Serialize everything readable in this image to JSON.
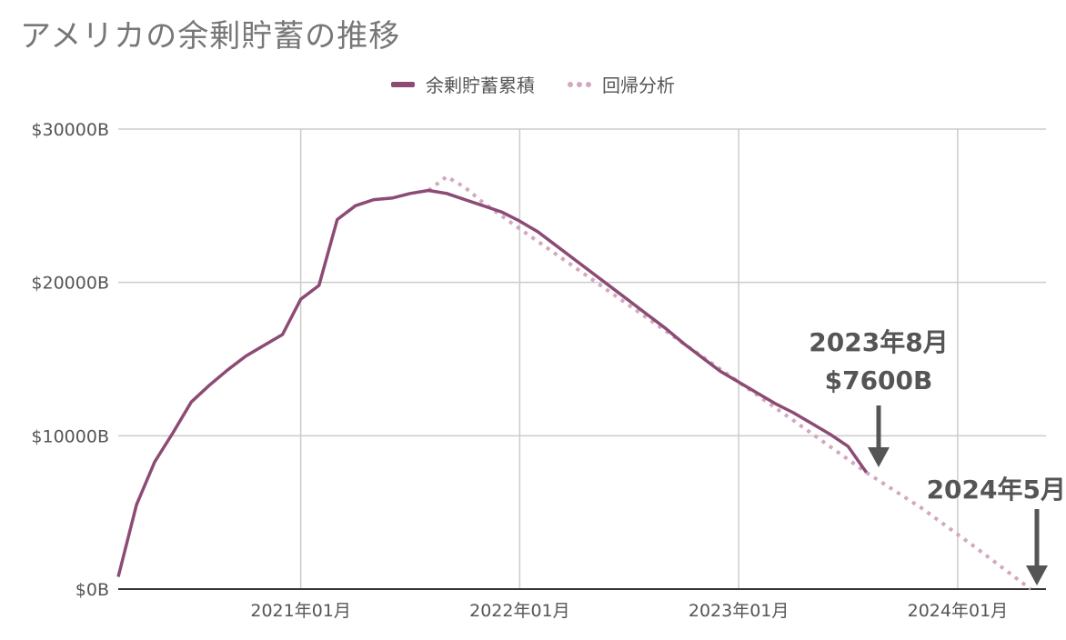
{
  "title": "アメリカの余剰貯蓄の推移",
  "legend": {
    "series1": "余剰貯蓄累積",
    "series2": "回帰分析"
  },
  "annotations": {
    "a1_line1": "2023年8月",
    "a1_line2": "$7600B",
    "a2_line1": "2024年5月"
  },
  "colors": {
    "actual": "#8c4b74",
    "regression": "#d2a8c0",
    "arrow": "#555555",
    "grid": "#cccccc"
  },
  "chart_data": {
    "type": "line",
    "title": "アメリカの余剰貯蓄の推移",
    "ylim": [
      0,
      30000
    ],
    "yticks": [
      0,
      10000,
      20000,
      30000
    ],
    "ytick_labels": [
      "$0B",
      "$10000B",
      "$20000B",
      "$30000B"
    ],
    "xticks": [
      "2021-01",
      "2022-01",
      "2023-01",
      "2024-01"
    ],
    "xtick_labels": [
      "2021年01月",
      "2022年01月",
      "2023年01月",
      "2024年01月"
    ],
    "series": [
      {
        "name": "余剰貯蓄累積",
        "style": "solid",
        "points": [
          [
            "2020-03",
            800
          ],
          [
            "2020-04",
            5500
          ],
          [
            "2020-05",
            8300
          ],
          [
            "2020-06",
            10200
          ],
          [
            "2020-07",
            12200
          ],
          [
            "2020-08",
            13300
          ],
          [
            "2020-09",
            14300
          ],
          [
            "2020-10",
            15200
          ],
          [
            "2020-11",
            15900
          ],
          [
            "2020-12",
            16600
          ],
          [
            "2021-01",
            18900
          ],
          [
            "2021-02",
            19800
          ],
          [
            "2021-03",
            24100
          ],
          [
            "2021-04",
            25000
          ],
          [
            "2021-05",
            25400
          ],
          [
            "2021-06",
            25500
          ],
          [
            "2021-07",
            25800
          ],
          [
            "2021-08",
            26000
          ],
          [
            "2021-09",
            25800
          ],
          [
            "2021-10",
            25400
          ],
          [
            "2021-11",
            25000
          ],
          [
            "2021-12",
            24600
          ],
          [
            "2022-01",
            24000
          ],
          [
            "2022-02",
            23300
          ],
          [
            "2022-03",
            22400
          ],
          [
            "2022-04",
            21500
          ],
          [
            "2022-05",
            20600
          ],
          [
            "2022-06",
            19700
          ],
          [
            "2022-07",
            18800
          ],
          [
            "2022-08",
            17900
          ],
          [
            "2022-09",
            17000
          ],
          [
            "2022-10",
            16000
          ],
          [
            "2022-11",
            15100
          ],
          [
            "2022-12",
            14200
          ],
          [
            "2023-01",
            13500
          ],
          [
            "2023-02",
            12800
          ],
          [
            "2023-03",
            12100
          ],
          [
            "2023-04",
            11500
          ],
          [
            "2023-05",
            10800
          ],
          [
            "2023-06",
            10100
          ],
          [
            "2023-07",
            9300
          ],
          [
            "2023-08",
            7600
          ]
        ]
      },
      {
        "name": "回帰分析",
        "style": "dotted",
        "points": [
          [
            "2021-08",
            26000
          ],
          [
            "2021-09",
            26900
          ],
          [
            "2021-10",
            26200
          ],
          [
            "2021-11",
            25200
          ],
          [
            "2022-01",
            23500
          ],
          [
            "2022-04",
            21000
          ],
          [
            "2022-07",
            18500
          ],
          [
            "2022-10",
            16000
          ],
          [
            "2023-01",
            13500
          ],
          [
            "2023-04",
            11000
          ],
          [
            "2023-08",
            7600
          ],
          [
            "2023-11",
            5300
          ],
          [
            "2024-02",
            2700
          ],
          [
            "2024-05",
            0
          ]
        ]
      }
    ]
  }
}
